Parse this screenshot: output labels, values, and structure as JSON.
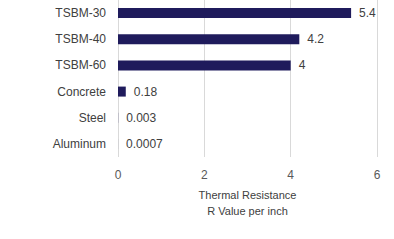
{
  "chart_data": {
    "type": "bar",
    "orientation": "horizontal",
    "categories": [
      "TSBM-30",
      "TSBM-40",
      "TSBM-60",
      "Concrete",
      "Steel",
      "Aluminum"
    ],
    "values": [
      5.4,
      4.2,
      4,
      0.18,
      0.003,
      0.0007
    ],
    "color": "#1f1b5c",
    "xlabel": "Thermal Resistance\nR Value per inch",
    "xlim": [
      0,
      6
    ],
    "xticks": [
      0,
      2,
      4,
      6
    ],
    "grid": true,
    "data_labels": true
  }
}
